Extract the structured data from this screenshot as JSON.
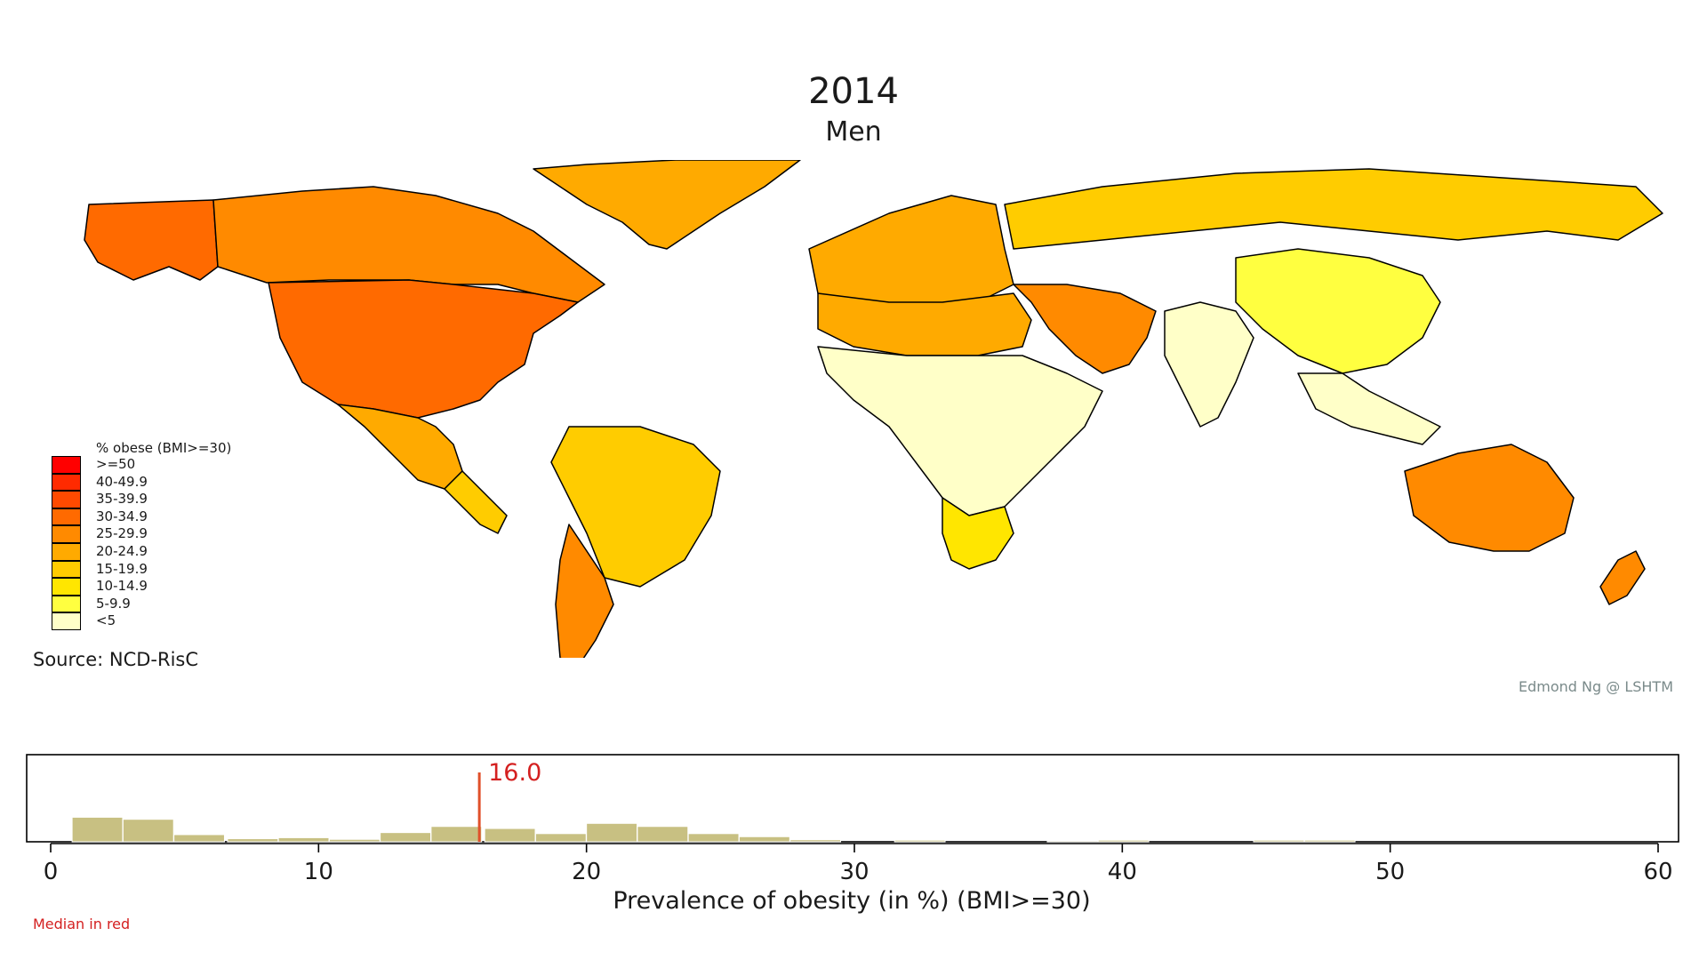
{
  "header": {
    "year": "2014",
    "sex": "Men"
  },
  "legend": {
    "title": "% obese (BMI>=30)",
    "classes": [
      {
        "label": ">=50",
        "color": "#ff0000"
      },
      {
        "label": "40-49.9",
        "color": "#ff2a00"
      },
      {
        "label": "35-39.9",
        "color": "#ff4a00"
      },
      {
        "label": "30-34.9",
        "color": "#ff6a00"
      },
      {
        "label": "25-29.9",
        "color": "#ff8a00"
      },
      {
        "label": "20-24.9",
        "color": "#ffaa00"
      },
      {
        "label": "15-19.9",
        "color": "#ffcc00"
      },
      {
        "label": "10-14.9",
        "color": "#ffe600"
      },
      {
        "label": "5-9.9",
        "color": "#ffff40"
      },
      {
        "label": "<5",
        "color": "#ffffc8"
      }
    ]
  },
  "map_regions": [
    {
      "name": "Alaska",
      "class": "30-34.9"
    },
    {
      "name": "Canada",
      "class": "25-29.9"
    },
    {
      "name": "United States",
      "class": "30-34.9"
    },
    {
      "name": "Greenland",
      "class": "20-24.9"
    },
    {
      "name": "Mexico",
      "class": "20-24.9"
    },
    {
      "name": "Central America",
      "class": "15-19.9"
    },
    {
      "name": "Brazil",
      "class": "15-19.9"
    },
    {
      "name": "Argentina",
      "class": "25-29.9"
    },
    {
      "name": "Western Europe",
      "class": "20-24.9"
    },
    {
      "name": "Russia",
      "class": "15-19.9"
    },
    {
      "name": "China",
      "class": "5-9.9"
    },
    {
      "name": "India",
      "class": "<5"
    },
    {
      "name": "Middle East",
      "class": "25-29.9"
    },
    {
      "name": "North Africa",
      "class": "20-24.9"
    },
    {
      "name": "Sub-Saharan Africa",
      "class": "<5"
    },
    {
      "name": "Southern Africa",
      "class": "10-14.9"
    },
    {
      "name": "Australia",
      "class": "25-29.9"
    },
    {
      "name": "New Zealand",
      "class": "25-29.9"
    },
    {
      "name": "Southeast Asia",
      "class": "<5"
    }
  ],
  "source": "Source: NCD-RisC",
  "credit": "Edmond Ng @ LSHTM",
  "chart_data": {
    "type": "bar",
    "xlabel": "Prevalence of obesity (in %) (BMI>=30)",
    "xlim": [
      0,
      60
    ],
    "xticks": [
      0,
      10,
      20,
      30,
      40,
      50,
      60
    ],
    "bin_width": 1.92,
    "bins": [
      {
        "x0": 0.8,
        "count": 12
      },
      {
        "x0": 2.7,
        "count": 11
      },
      {
        "x0": 4.6,
        "count": 3.5
      },
      {
        "x0": 6.6,
        "count": 1.5
      },
      {
        "x0": 8.5,
        "count": 2
      },
      {
        "x0": 10.4,
        "count": 1.2
      },
      {
        "x0": 12.3,
        "count": 4.5
      },
      {
        "x0": 14.2,
        "count": 7.5
      },
      {
        "x0": 16.2,
        "count": 6.5
      },
      {
        "x0": 18.1,
        "count": 4
      },
      {
        "x0": 20.0,
        "count": 9
      },
      {
        "x0": 21.9,
        "count": 7.5
      },
      {
        "x0": 23.8,
        "count": 4
      },
      {
        "x0": 25.7,
        "count": 2.5
      },
      {
        "x0": 27.6,
        "count": 1
      },
      {
        "x0": 31.5,
        "count": 0.8
      },
      {
        "x0": 37.2,
        "count": 0.5
      },
      {
        "x0": 39.1,
        "count": 0.8
      },
      {
        "x0": 44.9,
        "count": 0.8
      },
      {
        "x0": 46.8,
        "count": 0.8
      }
    ],
    "bar_color": "#c8c082",
    "median": 16.0,
    "median_label": "16.0",
    "median_color": "#e0502a"
  },
  "note": "Median in red"
}
